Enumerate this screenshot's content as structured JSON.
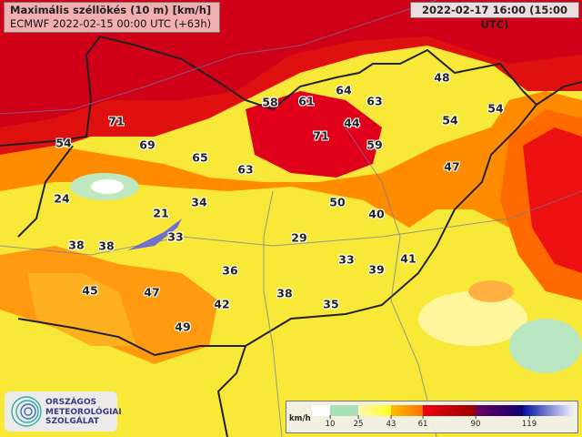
{
  "header": {
    "title": "Maximális széllökés (10 m) [km/h]",
    "subtitle": "ECMWF 2022-02-15 00:00 UTC (+63h)",
    "valid_time": "2022-02-17 16:00 (15:00 UTC)"
  },
  "legend": {
    "unit": "km/h",
    "ticks": [
      "10",
      "25",
      "43",
      "61",
      "90",
      "119"
    ],
    "colors": [
      "#ffffff",
      "#a8e0b8",
      "#ffff20",
      "#ff9000",
      "#e00010",
      "#6a0060",
      "#0010a0",
      "#e8e8ff"
    ]
  },
  "logo": {
    "line1": "ORSZÁGOS",
    "line2": "METEOROLÓGIAI",
    "line3": "SZOLGÁLAT"
  },
  "station_values": [
    "71",
    "69",
    "54",
    "65",
    "63",
    "58",
    "61",
    "64",
    "63",
    "48",
    "44",
    "71",
    "59",
    "54",
    "54",
    "47",
    "24",
    "34",
    "50",
    "40",
    "21",
    "33",
    "29",
    "38",
    "38",
    "36",
    "33",
    "39",
    "41",
    "45",
    "47",
    "42",
    "38",
    "35",
    "49"
  ]
}
